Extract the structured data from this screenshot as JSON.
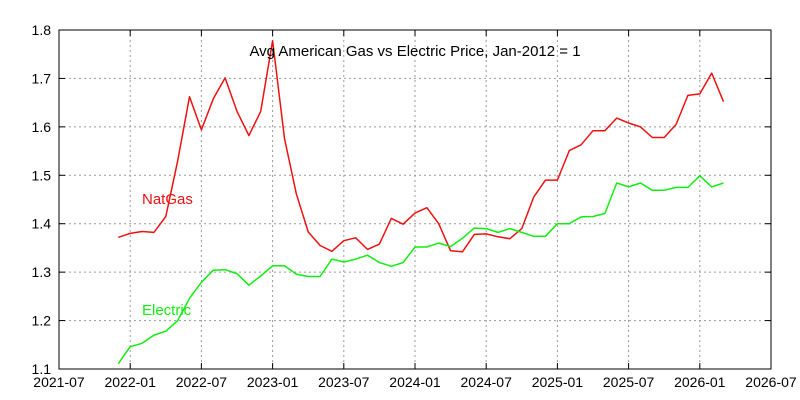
{
  "chart_data": {
    "type": "line",
    "title": "Avg American Gas vs Electric Price, Jan-2012 = 1",
    "xlabel": "",
    "ylabel": "",
    "xlim": [
      "2021-07",
      "2026-07"
    ],
    "ylim": [
      1.1,
      1.8
    ],
    "grid": true,
    "x_ticks": [
      "2021-07",
      "2022-01",
      "2022-07",
      "2023-01",
      "2023-07",
      "2024-01",
      "2024-07",
      "2025-01",
      "2025-07",
      "2026-01",
      "2026-07"
    ],
    "y_ticks": [
      "1.1",
      "1.2",
      "1.3",
      "1.4",
      "1.5",
      "1.6",
      "1.7",
      "1.8"
    ],
    "x": [
      "2021-12",
      "2022-01",
      "2022-02",
      "2022-03",
      "2022-04",
      "2022-05",
      "2022-06",
      "2022-07",
      "2022-08",
      "2022-09",
      "2022-10",
      "2022-11",
      "2022-12",
      "2023-01",
      "2023-02",
      "2023-03",
      "2023-04",
      "2023-05",
      "2023-06",
      "2023-07",
      "2023-08",
      "2023-09",
      "2023-10",
      "2023-11",
      "2023-12",
      "2024-01",
      "2024-02",
      "2024-03",
      "2024-04",
      "2024-05",
      "2024-06",
      "2024-07",
      "2024-08",
      "2024-09",
      "2024-10",
      "2024-11",
      "2024-12",
      "2025-01",
      "2025-02",
      "2025-03",
      "2025-04",
      "2025-05",
      "2025-06",
      "2025-07",
      "2025-08",
      "2025-09",
      "2025-10",
      "2025-11",
      "2025-12",
      "2026-01",
      "2026-02",
      "2026-03"
    ],
    "series": [
      {
        "name": "NatGas",
        "color": "#ee1111",
        "values": [
          1.372,
          1.38,
          1.384,
          1.382,
          1.415,
          1.53,
          1.662,
          1.594,
          1.658,
          1.701,
          1.632,
          1.582,
          1.632,
          1.778,
          1.576,
          1.462,
          1.383,
          1.355,
          1.343,
          1.365,
          1.371,
          1.347,
          1.358,
          1.411,
          1.399,
          1.422,
          1.433,
          1.4,
          1.344,
          1.342,
          1.378,
          1.379,
          1.373,
          1.369,
          1.39,
          1.455,
          1.49,
          1.49,
          1.551,
          1.563,
          1.592,
          1.592,
          1.618,
          1.608,
          1.6,
          1.578,
          1.578,
          1.605,
          1.665,
          1.668,
          1.711,
          1.652
        ]
      },
      {
        "name": "Electric",
        "color": "#11ee11",
        "values": [
          1.111,
          1.146,
          1.153,
          1.17,
          1.178,
          1.2,
          1.246,
          1.279,
          1.304,
          1.305,
          1.297,
          1.273,
          1.292,
          1.313,
          1.313,
          1.296,
          1.291,
          1.291,
          1.327,
          1.321,
          1.327,
          1.335,
          1.32,
          1.312,
          1.32,
          1.352,
          1.352,
          1.36,
          1.353,
          1.37,
          1.391,
          1.39,
          1.382,
          1.39,
          1.382,
          1.374,
          1.374,
          1.4,
          1.4,
          1.414,
          1.415,
          1.421,
          1.484,
          1.476,
          1.484,
          1.469,
          1.469,
          1.475,
          1.475,
          1.499,
          1.476,
          1.484
        ]
      }
    ]
  }
}
